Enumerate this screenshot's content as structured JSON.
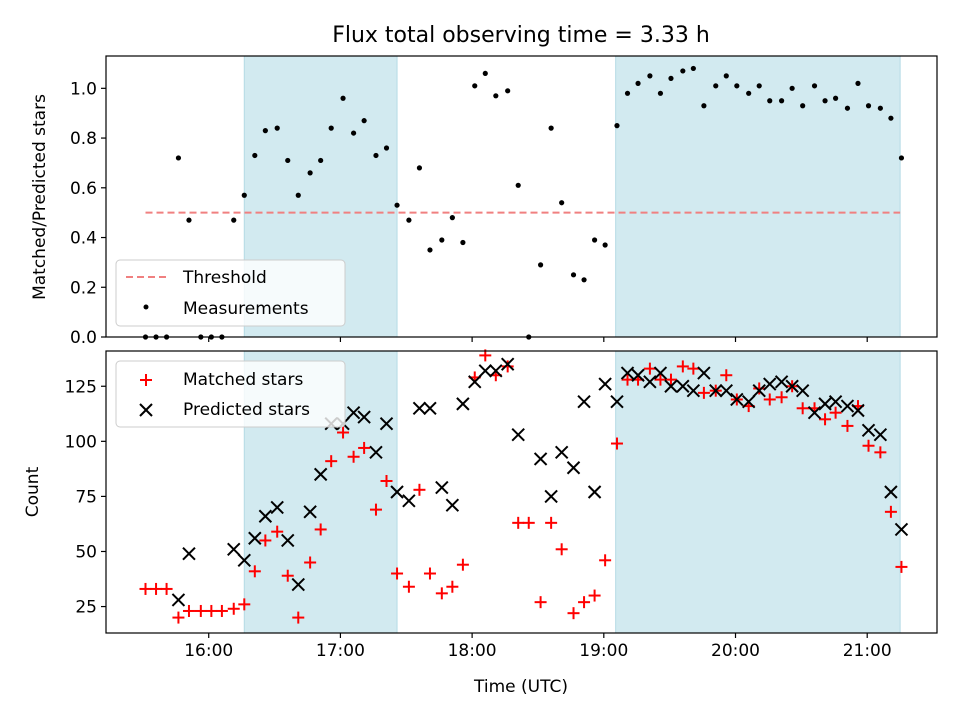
{
  "chart_data": {
    "title": "Flux total observing time = 3.33 h",
    "type": "scatter",
    "xlabel": "Time (UTC)",
    "x_ticks": [
      {
        "t": 16.0,
        "label": "16:00"
      },
      {
        "t": 17.0,
        "label": "17:00"
      },
      {
        "t": 18.0,
        "label": "18:00"
      },
      {
        "t": 19.0,
        "label": "19:00"
      },
      {
        "t": 20.0,
        "label": "20:00"
      },
      {
        "t": 21.0,
        "label": "21:00"
      }
    ],
    "xlim": [
      15.22,
      21.53
    ],
    "shaded_intervals": [
      [
        16.27,
        17.43
      ],
      [
        19.09,
        21.25
      ]
    ],
    "shade_color": "#d2eaf0",
    "top_panel": {
      "ylabel": "Matched/Predicted stars",
      "ylim": [
        0,
        1.13
      ],
      "y_ticks": [
        {
          "v": 0.0,
          "label": "0.0"
        },
        {
          "v": 0.2,
          "label": "0.2"
        },
        {
          "v": 0.4,
          "label": "0.4"
        },
        {
          "v": 0.6,
          "label": "0.6"
        },
        {
          "v": 0.8,
          "label": "0.8"
        },
        {
          "v": 1.0,
          "label": "1.0"
        }
      ],
      "threshold": {
        "name": "Threshold",
        "value": 0.5,
        "x_range": [
          15.52,
          21.25
        ],
        "color": "#f08080"
      },
      "measurements": {
        "name": "Measurements",
        "color": "#000000",
        "points": [
          [
            15.52,
            0.0
          ],
          [
            15.6,
            0.0
          ],
          [
            15.68,
            0.0
          ],
          [
            15.77,
            0.72
          ],
          [
            15.85,
            0.47
          ],
          [
            15.94,
            0.0
          ],
          [
            16.02,
            0.0
          ],
          [
            16.1,
            0.0
          ],
          [
            16.19,
            0.47
          ],
          [
            16.27,
            0.57
          ],
          [
            16.35,
            0.73
          ],
          [
            16.43,
            0.83
          ],
          [
            16.52,
            0.84
          ],
          [
            16.6,
            0.71
          ],
          [
            16.68,
            0.57
          ],
          [
            16.77,
            0.66
          ],
          [
            16.85,
            0.71
          ],
          [
            16.93,
            0.84
          ],
          [
            17.02,
            0.96
          ],
          [
            17.1,
            0.82
          ],
          [
            17.18,
            0.87
          ],
          [
            17.27,
            0.73
          ],
          [
            17.35,
            0.76
          ],
          [
            17.43,
            0.53
          ],
          [
            17.52,
            0.47
          ],
          [
            17.6,
            0.68
          ],
          [
            17.68,
            0.35
          ],
          [
            17.77,
            0.39
          ],
          [
            17.85,
            0.48
          ],
          [
            17.93,
            0.38
          ],
          [
            18.02,
            1.01
          ],
          [
            18.1,
            1.06
          ],
          [
            18.18,
            0.97
          ],
          [
            18.27,
            0.99
          ],
          [
            18.35,
            0.61
          ],
          [
            18.43,
            0.0
          ],
          [
            18.52,
            0.29
          ],
          [
            18.6,
            0.84
          ],
          [
            18.68,
            0.54
          ],
          [
            18.77,
            0.25
          ],
          [
            18.85,
            0.23
          ],
          [
            18.93,
            0.39
          ],
          [
            19.01,
            0.37
          ],
          [
            19.1,
            0.85
          ],
          [
            19.18,
            0.98
          ],
          [
            19.26,
            1.02
          ],
          [
            19.35,
            1.05
          ],
          [
            19.43,
            0.98
          ],
          [
            19.51,
            1.04
          ],
          [
            19.6,
            1.07
          ],
          [
            19.68,
            1.08
          ],
          [
            19.76,
            0.93
          ],
          [
            19.85,
            1.01
          ],
          [
            19.93,
            1.05
          ],
          [
            20.01,
            1.01
          ],
          [
            20.1,
            0.98
          ],
          [
            20.18,
            1.01
          ],
          [
            20.26,
            0.95
          ],
          [
            20.35,
            0.95
          ],
          [
            20.43,
            1.0
          ],
          [
            20.51,
            0.93
          ],
          [
            20.6,
            1.01
          ],
          [
            20.68,
            0.95
          ],
          [
            20.76,
            0.96
          ],
          [
            20.85,
            0.92
          ],
          [
            20.93,
            1.02
          ],
          [
            21.01,
            0.93
          ],
          [
            21.1,
            0.92
          ],
          [
            21.18,
            0.88
          ],
          [
            21.26,
            0.72
          ]
        ]
      }
    },
    "bottom_panel": {
      "ylabel": "Count",
      "ylim": [
        13,
        141
      ],
      "y_ticks": [
        {
          "v": 25,
          "label": "25"
        },
        {
          "v": 50,
          "label": "50"
        },
        {
          "v": 75,
          "label": "75"
        },
        {
          "v": 100,
          "label": "100"
        },
        {
          "v": 125,
          "label": "125"
        }
      ],
      "series": [
        {
          "name": "Matched stars",
          "marker": "+",
          "color": "#ff0000",
          "points": [
            [
              15.52,
              33
            ],
            [
              15.6,
              33
            ],
            [
              15.68,
              33
            ],
            [
              15.77,
              20
            ],
            [
              15.85,
              23
            ],
            [
              15.94,
              23
            ],
            [
              16.02,
              23
            ],
            [
              16.1,
              23
            ],
            [
              16.19,
              24
            ],
            [
              16.27,
              26
            ],
            [
              16.35,
              41
            ],
            [
              16.43,
              55
            ],
            [
              16.52,
              59
            ],
            [
              16.6,
              39
            ],
            [
              16.68,
              20
            ],
            [
              16.77,
              45
            ],
            [
              16.85,
              60
            ],
            [
              16.93,
              91
            ],
            [
              17.02,
              104
            ],
            [
              17.1,
              93
            ],
            [
              17.18,
              97
            ],
            [
              17.27,
              69
            ],
            [
              17.35,
              82
            ],
            [
              17.43,
              40
            ],
            [
              17.52,
              34
            ],
            [
              17.6,
              78
            ],
            [
              17.68,
              40
            ],
            [
              17.77,
              31
            ],
            [
              17.85,
              34
            ],
            [
              17.93,
              44
            ],
            [
              18.02,
              129
            ],
            [
              18.1,
              139
            ],
            [
              18.18,
              130
            ],
            [
              18.27,
              134
            ],
            [
              18.35,
              63
            ],
            [
              18.43,
              63
            ],
            [
              18.52,
              27
            ],
            [
              18.6,
              63
            ],
            [
              18.68,
              51
            ],
            [
              18.77,
              22
            ],
            [
              18.85,
              27
            ],
            [
              18.93,
              30
            ],
            [
              19.01,
              46
            ],
            [
              19.1,
              99
            ],
            [
              19.18,
              128
            ],
            [
              19.26,
              128
            ],
            [
              19.35,
              133
            ],
            [
              19.43,
              128
            ],
            [
              19.51,
              128
            ],
            [
              19.6,
              134
            ],
            [
              19.68,
              133
            ],
            [
              19.76,
              122
            ],
            [
              19.85,
              123
            ],
            [
              19.93,
              130
            ],
            [
              20.01,
              119
            ],
            [
              20.1,
              116
            ],
            [
              20.18,
              124
            ],
            [
              20.26,
              119
            ],
            [
              20.35,
              120
            ],
            [
              20.43,
              125
            ],
            [
              20.51,
              115
            ],
            [
              20.6,
              115
            ],
            [
              20.68,
              110
            ],
            [
              20.76,
              113
            ],
            [
              20.85,
              107
            ],
            [
              20.93,
              116
            ],
            [
              21.01,
              98
            ],
            [
              21.1,
              95
            ],
            [
              21.18,
              68
            ],
            [
              21.26,
              43
            ]
          ]
        },
        {
          "name": "Predicted stars",
          "marker": "x",
          "color": "#000000",
          "points": [
            [
              15.77,
              28
            ],
            [
              15.85,
              49
            ],
            [
              16.19,
              51
            ],
            [
              16.27,
              46
            ],
            [
              16.35,
              56
            ],
            [
              16.43,
              66
            ],
            [
              16.52,
              70
            ],
            [
              16.6,
              55
            ],
            [
              16.68,
              35
            ],
            [
              16.77,
              68
            ],
            [
              16.85,
              85
            ],
            [
              16.93,
              108
            ],
            [
              17.02,
              108
            ],
            [
              17.1,
              113
            ],
            [
              17.18,
              111
            ],
            [
              17.27,
              95
            ],
            [
              17.35,
              108
            ],
            [
              17.43,
              77
            ],
            [
              17.52,
              73
            ],
            [
              17.6,
              115
            ],
            [
              17.68,
              115
            ],
            [
              17.77,
              79
            ],
            [
              17.85,
              71
            ],
            [
              17.93,
              117
            ],
            [
              18.02,
              127
            ],
            [
              18.1,
              132
            ],
            [
              18.18,
              132
            ],
            [
              18.27,
              135
            ],
            [
              18.35,
              103
            ],
            [
              18.52,
              92
            ],
            [
              18.6,
              75
            ],
            [
              18.68,
              95
            ],
            [
              18.77,
              88
            ],
            [
              18.85,
              118
            ],
            [
              18.93,
              77
            ],
            [
              19.01,
              126
            ],
            [
              19.1,
              118
            ],
            [
              19.18,
              131
            ],
            [
              19.26,
              130
            ],
            [
              19.35,
              127
            ],
            [
              19.43,
              131
            ],
            [
              19.51,
              125
            ],
            [
              19.6,
              125
            ],
            [
              19.68,
              123
            ],
            [
              19.76,
              131
            ],
            [
              19.85,
              123
            ],
            [
              19.93,
              123
            ],
            [
              20.01,
              119
            ],
            [
              20.1,
              118
            ],
            [
              20.18,
              123
            ],
            [
              20.26,
              126
            ],
            [
              20.35,
              127
            ],
            [
              20.43,
              125
            ],
            [
              20.51,
              123
            ],
            [
              20.6,
              113
            ],
            [
              20.68,
              117
            ],
            [
              20.76,
              118
            ],
            [
              20.85,
              116
            ],
            [
              20.93,
              114
            ],
            [
              21.01,
              105
            ],
            [
              21.1,
              103
            ],
            [
              21.18,
              77
            ],
            [
              21.26,
              60
            ]
          ]
        }
      ]
    }
  }
}
